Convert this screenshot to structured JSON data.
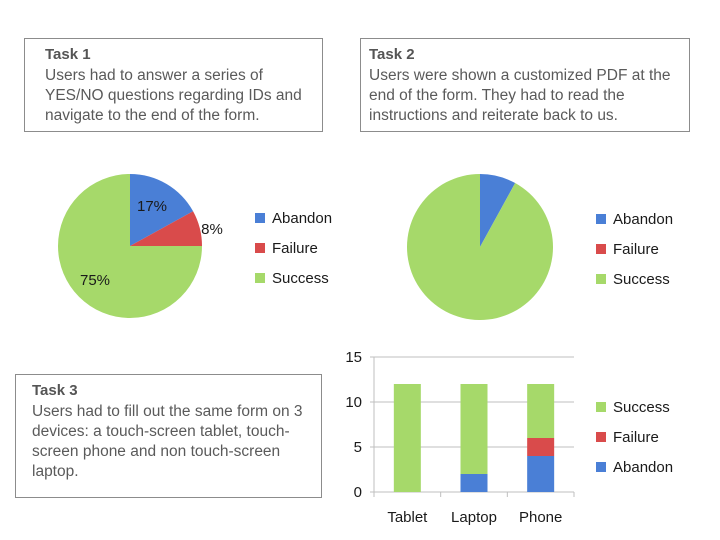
{
  "colors": {
    "abandon": "#4a7fd6",
    "failure": "#d94b4b",
    "success": "#a6d96a",
    "text": "#595959",
    "axis": "#bfbfbf"
  },
  "tasks": [
    {
      "title": "Task 1",
      "description": "Users had to answer a series of YES/NO questions regarding IDs and navigate to the end of the form."
    },
    {
      "title": "Task 2",
      "description": " Users were shown a customized PDF at the end of the form. They had to read the instructions and reiterate back to us."
    },
    {
      "title": "Task 3",
      "description": "Users had to fill out the same form on 3 devices: a touch-screen tablet, touch-screen phone and non touch-screen laptop."
    }
  ],
  "chart_data": [
    {
      "type": "pie",
      "categories": [
        "Abandon",
        "Failure",
        "Success"
      ],
      "values": [
        17,
        8,
        75
      ],
      "data_labels": [
        "17%",
        "8%",
        "75%"
      ],
      "legend": "right"
    },
    {
      "type": "pie",
      "categories": [
        "Abandon",
        "Failure",
        "Success"
      ],
      "values": [
        8,
        0,
        92
      ],
      "legend": "right"
    },
    {
      "type": "bar",
      "stacked": true,
      "categories": [
        "Tablet",
        "Laptop",
        "Phone"
      ],
      "series": [
        {
          "name": "Abandon",
          "values": [
            0,
            2,
            4
          ]
        },
        {
          "name": "Failure",
          "values": [
            0,
            0,
            2
          ]
        },
        {
          "name": "Success",
          "values": [
            12,
            10,
            6
          ]
        }
      ],
      "ylim": [
        0,
        15
      ],
      "yticks": [
        0,
        5,
        10,
        15
      ],
      "grid": true,
      "legend": "right"
    }
  ]
}
